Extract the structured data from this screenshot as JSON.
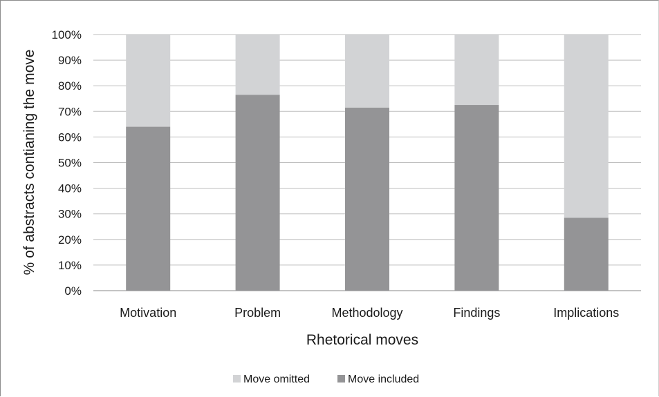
{
  "chart_data": {
    "type": "bar",
    "stacked": true,
    "percent_stacked": true,
    "categories": [
      "Motivation",
      "Problem",
      "Methodology",
      "Findings",
      "Implications"
    ],
    "series": [
      {
        "name": "Move included",
        "values": [
          64,
          76.5,
          71.5,
          72.5,
          28.5
        ],
        "color": "#949496"
      },
      {
        "name": "Move omitted",
        "values": [
          36,
          23.5,
          28.5,
          27.5,
          71.5
        ],
        "color": "#d2d3d5"
      }
    ],
    "legend_order": [
      "Move omitted",
      "Move included"
    ],
    "ylim": [
      0,
      100
    ],
    "yticks": [
      "0%",
      "10%",
      "20%",
      "30%",
      "40%",
      "50%",
      "60%",
      "70%",
      "80%",
      "90%",
      "100%"
    ],
    "xlabel": "Rhetorical moves",
    "ylabel": "% of abstracts contianing the move",
    "grid": true,
    "legend_position": "bottom"
  }
}
